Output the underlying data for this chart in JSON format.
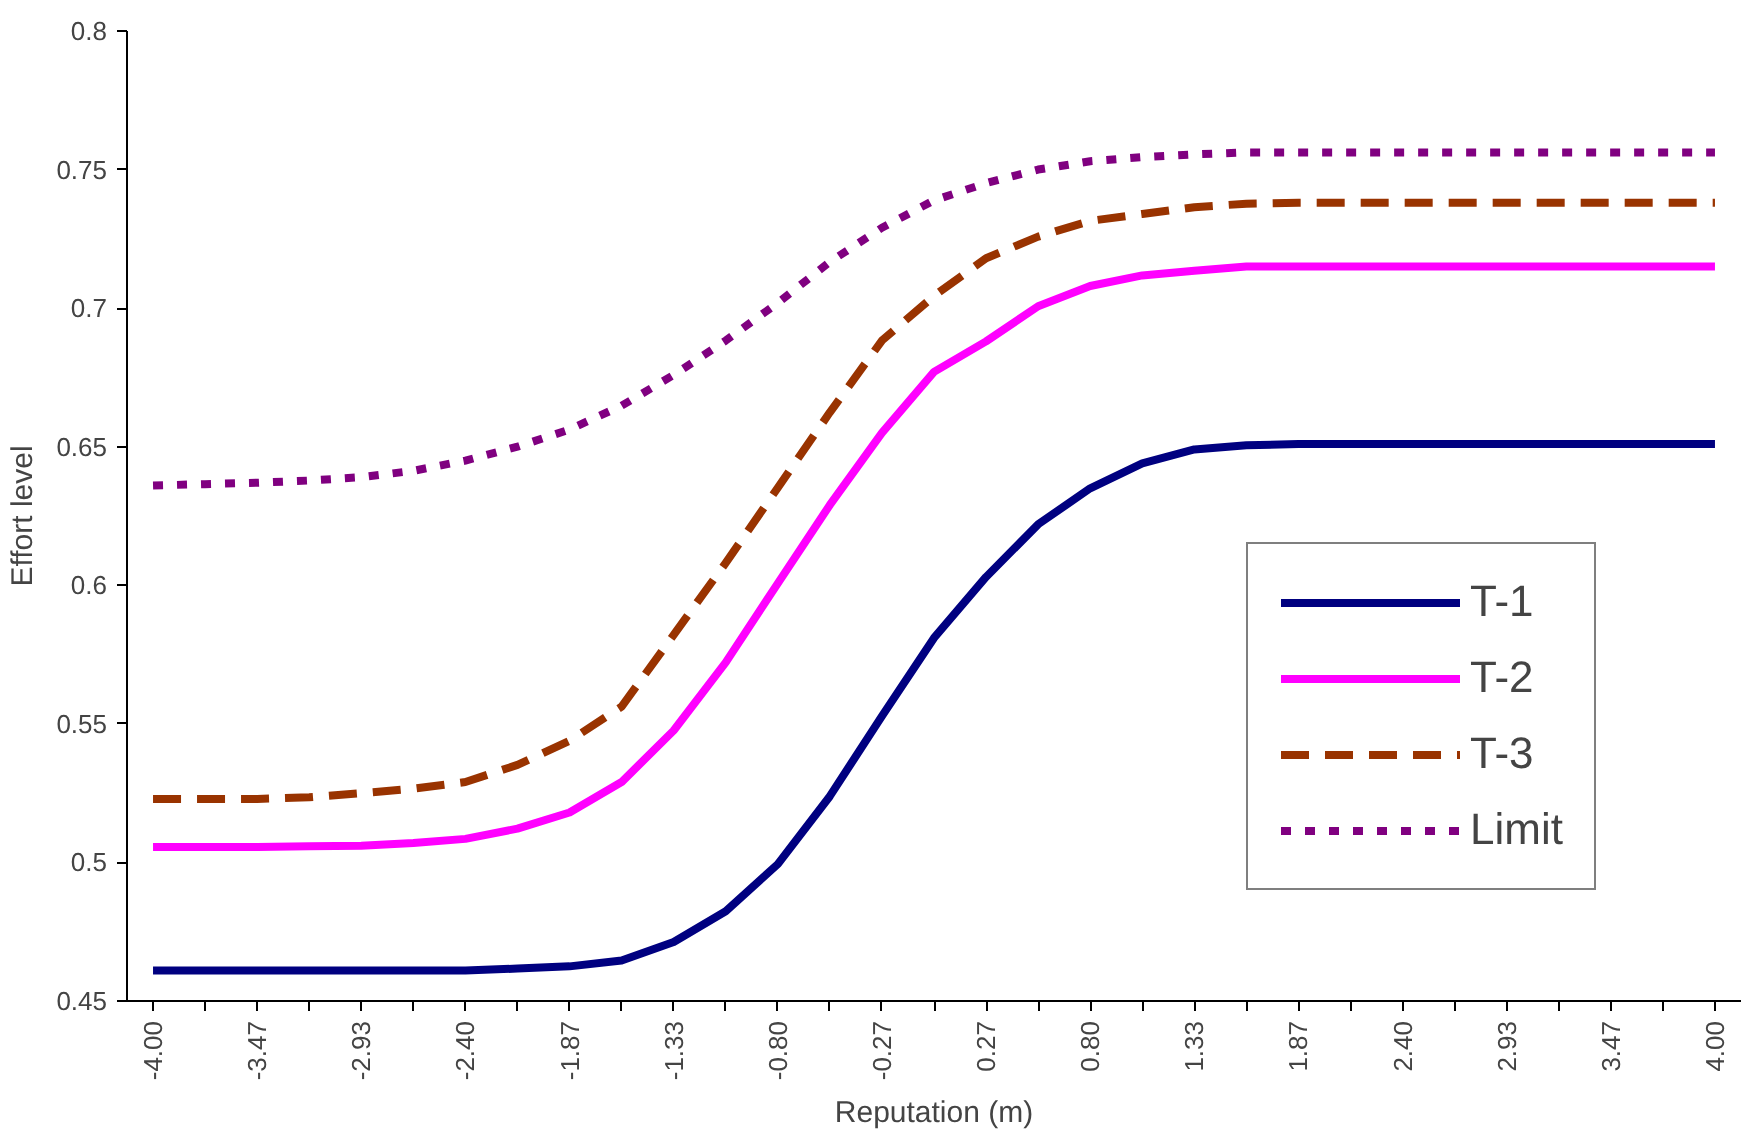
{
  "chart_data": {
    "type": "line",
    "xlabel": "Reputation (m)",
    "ylabel": "Effort level",
    "categories": [
      "-4.00",
      null,
      "-3.47",
      null,
      "-2.93",
      null,
      "-2.40",
      null,
      "-1.87",
      null,
      "-1.33",
      null,
      "-0.80",
      null,
      "-0.27",
      null,
      "0.27",
      null,
      "0.80",
      null,
      "1.33",
      null,
      "1.87",
      null,
      "2.40",
      null,
      "2.93",
      null,
      "3.47",
      null,
      "4.00"
    ],
    "ylim": [
      0.45,
      0.8
    ],
    "yticks": [
      0.45,
      0.5,
      0.55,
      0.6,
      0.65,
      0.7,
      0.75,
      0.8
    ],
    "grid": false,
    "legend": "right",
    "marker": "none",
    "series": [
      {
        "name": "T-1",
        "color": "#000080",
        "line_style": "solid",
        "values": [
          0.461,
          0.461,
          0.461,
          0.461,
          0.461,
          0.461,
          0.461,
          0.4617,
          0.4625,
          0.4646,
          0.4713,
          0.4824,
          0.4994,
          0.5239,
          0.5528,
          0.581,
          0.603,
          0.622,
          0.635,
          0.644,
          0.649,
          0.6505,
          0.651,
          0.651,
          0.651,
          0.651,
          0.651,
          0.651,
          0.651,
          0.651,
          0.651
        ]
      },
      {
        "name": "T-2",
        "color": "#ff00ff",
        "line_style": "solid",
        "values": [
          0.5056,
          0.5056,
          0.5056,
          0.5058,
          0.506,
          0.507,
          0.5085,
          0.5122,
          0.518,
          0.529,
          0.5476,
          0.5722,
          0.6007,
          0.629,
          0.655,
          0.677,
          0.688,
          0.7007,
          0.708,
          0.7118,
          0.7135,
          0.715,
          0.715,
          0.715,
          0.715,
          0.715,
          0.715,
          0.715,
          0.715,
          0.715,
          0.715
        ]
      },
      {
        "name": "T-3",
        "color": "#993300",
        "line_style": "dashed",
        "values": [
          0.5229,
          0.5229,
          0.5229,
          0.5235,
          0.525,
          0.5266,
          0.529,
          0.5352,
          0.5439,
          0.5562,
          0.5821,
          0.6081,
          0.6352,
          0.6624,
          0.6883,
          0.7044,
          0.718,
          0.7258,
          0.7315,
          0.734,
          0.7364,
          0.7377,
          0.738,
          0.738,
          0.738,
          0.738,
          0.738,
          0.738,
          0.738,
          0.738,
          0.738
        ]
      },
      {
        "name": "Limit",
        "color": "#800080",
        "line_style": "dotted",
        "values": [
          0.636,
          0.6365,
          0.637,
          0.6378,
          0.639,
          0.6413,
          0.645,
          0.65,
          0.6562,
          0.6648,
          0.6759,
          0.6883,
          0.7019,
          0.7167,
          0.729,
          0.7389,
          0.7451,
          0.75,
          0.753,
          0.7545,
          0.7555,
          0.7562,
          0.7562,
          0.7562,
          0.7562,
          0.7562,
          0.7562,
          0.7562,
          0.7562,
          0.7562,
          0.7562
        ]
      }
    ]
  }
}
